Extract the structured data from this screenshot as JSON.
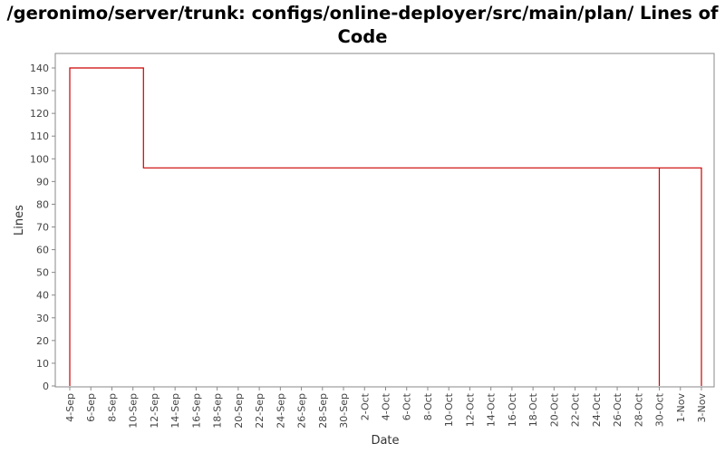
{
  "chart_data": {
    "type": "line",
    "title": "/geronimo/server/trunk: configs/online-deployer/src/main/plan/ Lines of Code",
    "xlabel": "Date",
    "ylabel": "Lines",
    "ylim": [
      0,
      145
    ],
    "yticks": [
      0,
      10,
      20,
      30,
      40,
      50,
      60,
      70,
      80,
      90,
      100,
      110,
      120,
      130,
      140
    ],
    "xticks": [
      "4-Sep",
      "6-Sep",
      "8-Sep",
      "10-Sep",
      "12-Sep",
      "14-Sep",
      "16-Sep",
      "18-Sep",
      "20-Sep",
      "22-Sep",
      "24-Sep",
      "26-Sep",
      "28-Sep",
      "30-Sep",
      "2-Oct",
      "4-Oct",
      "6-Oct",
      "8-Oct",
      "10-Oct",
      "12-Oct",
      "14-Oct",
      "16-Oct",
      "18-Oct",
      "20-Oct",
      "22-Oct",
      "24-Oct",
      "26-Oct",
      "28-Oct",
      "30-Oct",
      "1-Nov",
      "3-Nov"
    ],
    "step": true,
    "color": "#cc0000",
    "series": [
      {
        "points": [
          {
            "x": "4-Sep",
            "y": 0
          },
          {
            "x": "4-Sep",
            "y": 140
          },
          {
            "x": "11-Sep",
            "y": 140
          },
          {
            "x": "11-Sep",
            "y": 96
          },
          {
            "x": "30-Oct",
            "y": 96
          },
          {
            "x": "30-Oct",
            "y": 0
          },
          {
            "x": "30-Oct",
            "y": 96
          },
          {
            "x": "3-Nov",
            "y": 96
          },
          {
            "x": "3-Nov",
            "y": 0
          }
        ]
      }
    ]
  }
}
